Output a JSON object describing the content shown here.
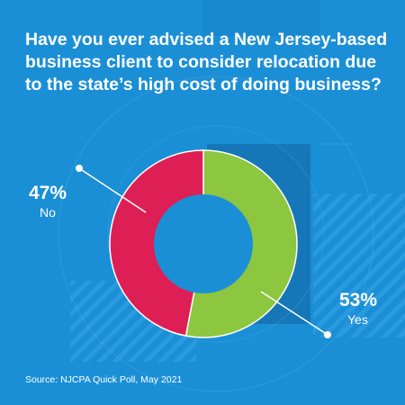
{
  "title": "Have you ever advised a New Jersey-based business client to consider relocation due to the state’s high cost of doing business?",
  "source": "Source: NJCPA Quick Poll, May 2021",
  "chart_data": {
    "type": "pie",
    "style": "donut",
    "title": "Have you ever advised a New Jersey-based business client to consider relocation due to the state’s high cost of doing business?",
    "slices": [
      {
        "label": "Yes",
        "value": 53,
        "display": "53%",
        "color": "#8dc63f"
      },
      {
        "label": "No",
        "value": 47,
        "display": "47%",
        "color": "#de1f55"
      }
    ],
    "background_color": "#1b8fd6",
    "center_color": "#1a8fd6"
  }
}
